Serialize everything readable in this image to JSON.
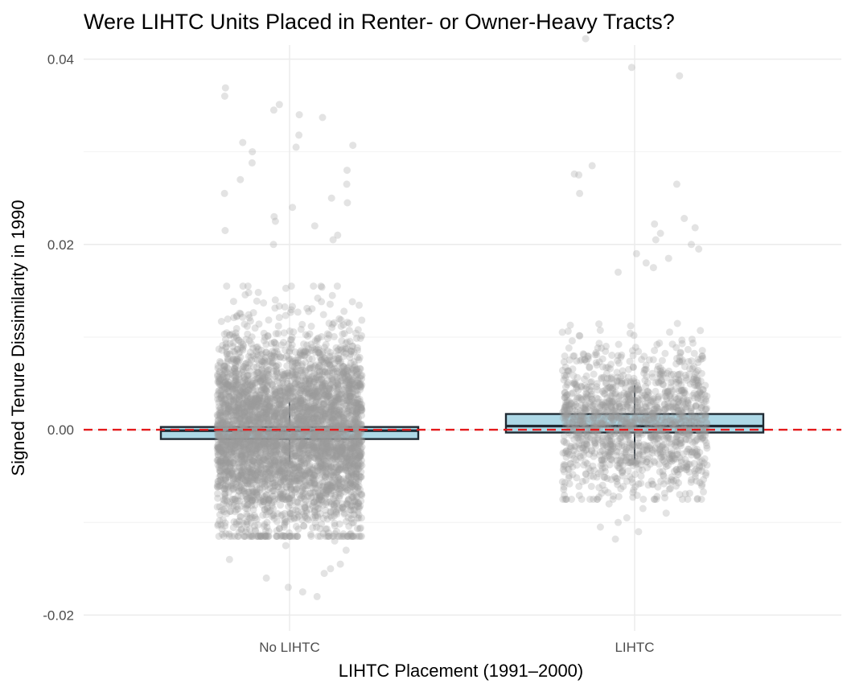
{
  "chart_data": {
    "type": "box",
    "title": "Were LIHTC Units Placed in Renter- or Owner-Heavy Tracts?",
    "xlabel": "LIHTC Placement (1991–2000)",
    "ylabel": "Signed Tenure Dissimilarity in 1990",
    "categories": [
      "No LIHTC",
      "LIHTC"
    ],
    "ylim": [
      -0.0217,
      0.0403
    ],
    "yticks": [
      -0.02,
      0.0,
      0.02,
      0.04
    ],
    "ytick_labels": [
      "-0.02",
      "0.00",
      "0.02",
      "0.04"
    ],
    "minor_gridlines": [
      -0.01,
      0.01,
      0.03
    ],
    "grid": true,
    "boxplots": [
      {
        "category": "No LIHTC",
        "q1": -0.001,
        "median": -0.0001,
        "q3": 0.0003,
        "lower_whisker": -0.0035,
        "upper_whisker": 0.003
      },
      {
        "category": "LIHTC",
        "q1": -0.0003,
        "median": 0.0004,
        "q3": 0.0017,
        "lower_whisker": -0.0033,
        "upper_whisker": 0.0048
      }
    ],
    "jitter_points": [
      {
        "category": "No LIHTC",
        "n_dense": 4200,
        "center": -0.0003,
        "spread": 0.0052,
        "outliers": [
          0.036,
          0.0351,
          0.0369,
          0.0345,
          0.034,
          0.0337,
          0.0318,
          0.031,
          0.0307,
          0.0305,
          0.03,
          0.0288,
          0.028,
          0.027,
          0.0265,
          0.0255,
          0.025,
          0.0245,
          0.024,
          0.023,
          0.0225,
          0.022,
          0.0215,
          0.021,
          0.0205,
          0.02,
          -0.012,
          -0.0125,
          -0.013,
          -0.014,
          -0.0145,
          -0.015,
          -0.0155,
          -0.016,
          -0.017,
          -0.0175,
          -0.018
        ]
      },
      {
        "category": "LIHTC",
        "n_dense": 1400,
        "center": 0.0008,
        "spread": 0.0038,
        "outliers": [
          0.0422,
          0.0391,
          0.0382,
          0.0285,
          0.0276,
          0.0275,
          0.0265,
          0.0255,
          0.0228,
          0.0222,
          0.0218,
          0.0212,
          0.0205,
          0.02,
          0.0195,
          0.019,
          0.0185,
          0.018,
          0.0175,
          0.017,
          -0.008,
          -0.0085,
          -0.009,
          -0.0095,
          -0.01,
          -0.0105,
          -0.011,
          -0.0118
        ]
      }
    ],
    "reference_line": {
      "y": 0.0,
      "color": "#e41a1c",
      "style": "dashed"
    },
    "colors": {
      "box_fill": "#add8e6",
      "box_outline": "#1f2a33",
      "points": "#999999",
      "reference": "#e41a1c"
    }
  }
}
